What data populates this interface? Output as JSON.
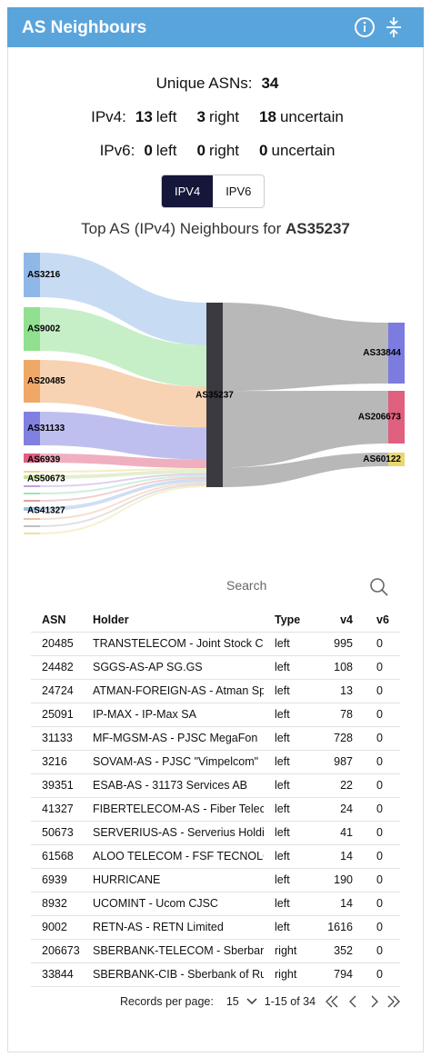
{
  "header": {
    "title": "AS Neighbours"
  },
  "summary": {
    "unique_label": "Unique ASNs:",
    "unique_value": "34",
    "ipv4_label": "IPv4:",
    "ipv4": [
      {
        "count": "13",
        "text": "left"
      },
      {
        "count": "3",
        "text": "right"
      },
      {
        "count": "18",
        "text": "uncertain"
      }
    ],
    "ipv6_label": "IPv6:",
    "ipv6": [
      {
        "count": "0",
        "text": "left"
      },
      {
        "count": "0",
        "text": "right"
      },
      {
        "count": "0",
        "text": "uncertain"
      }
    ]
  },
  "tabs": [
    "IPV4",
    "IPV6"
  ],
  "sankey": {
    "title_prefix": "Top AS (IPv4) Neighbours for ",
    "title_asn": "AS35237",
    "center": "AS35237",
    "left": [
      "AS3216",
      "AS9002",
      "AS20485",
      "AS31133",
      "AS6939",
      "AS50673",
      "AS41327"
    ],
    "right": [
      "AS33844",
      "AS206673",
      "AS60122"
    ]
  },
  "search_placeholder": "Search",
  "table": {
    "columns": [
      "ASN",
      "Holder",
      "Type",
      "v4",
      "v6"
    ],
    "rows": [
      [
        "20485",
        "TRANSTELECOM - Joint Stock Company",
        "left",
        "995",
        "0"
      ],
      [
        "24482",
        "SGGS-AS-AP SG.GS",
        "left",
        "108",
        "0"
      ],
      [
        "24724",
        "ATMAN-FOREIGN-AS - Atman Sp. z o.o.",
        "left",
        "13",
        "0"
      ],
      [
        "25091",
        "IP-MAX - IP-Max SA",
        "left",
        "78",
        "0"
      ],
      [
        "31133",
        "MF-MGSM-AS - PJSC MegaFon",
        "left",
        "728",
        "0"
      ],
      [
        "3216",
        "SOVAM-AS - PJSC \"Vimpelcom\"",
        "left",
        "987",
        "0"
      ],
      [
        "39351",
        "ESAB-AS - 31173 Services AB",
        "left",
        "22",
        "0"
      ],
      [
        "41327",
        "FIBERTELECOM-AS - Fiber Telecom S.p.A.",
        "left",
        "24",
        "0"
      ],
      [
        "50673",
        "SERVERIUS-AS - Serverius Holding B.V.",
        "left",
        "41",
        "0"
      ],
      [
        "61568",
        "ALOO TELECOM - FSF TECNOLOGIA S.A.",
        "left",
        "14",
        "0"
      ],
      [
        "6939",
        "HURRICANE",
        "left",
        "190",
        "0"
      ],
      [
        "8932",
        "UCOMINT - Ucom CJSC",
        "left",
        "14",
        "0"
      ],
      [
        "9002",
        "RETN-AS - RETN Limited",
        "left",
        "1616",
        "0"
      ],
      [
        "206673",
        "SBERBANK-TELECOM - Sberbank-Telecom LLC",
        "right",
        "352",
        "0"
      ],
      [
        "33844",
        "SBERBANK-CIB - Sberbank of Russia",
        "right",
        "794",
        "0"
      ]
    ]
  },
  "pagination": {
    "label": "Records per page:",
    "per_page": "15",
    "range": "1-15 of 34"
  }
}
